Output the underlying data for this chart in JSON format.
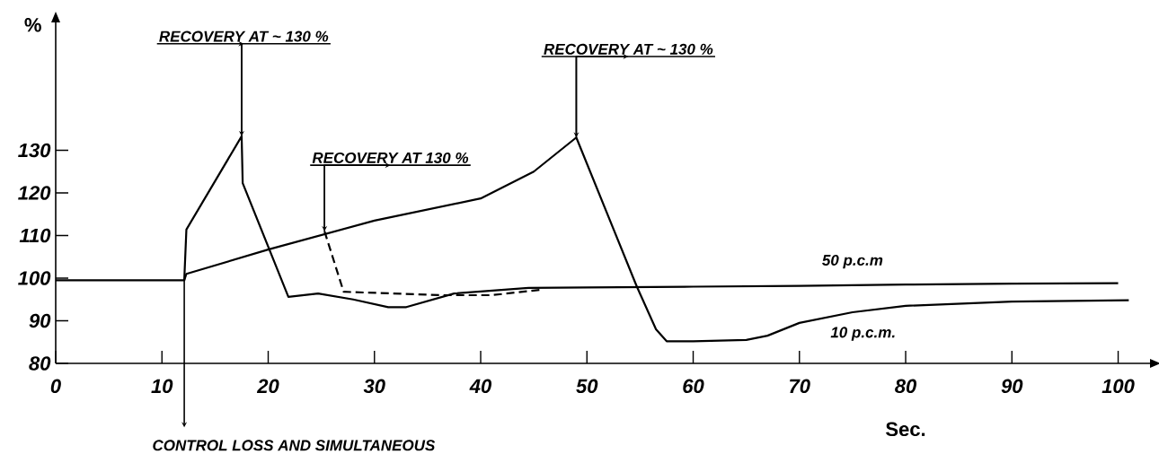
{
  "chart_data": {
    "type": "line",
    "xlabel": "Sec.",
    "ylabel": "%",
    "xlim": [
      0,
      103
    ],
    "ylim": [
      80,
      160
    ],
    "xticks": [
      0,
      10,
      20,
      30,
      40,
      50,
      60,
      70,
      80,
      90,
      100
    ],
    "yticks": [
      80,
      90,
      100,
      110,
      120,
      130
    ],
    "grid": false,
    "marker": "none",
    "series": [
      {
        "name": "50 p.c.m",
        "color": "#000000",
        "line_style": "solid",
        "x": [
          0,
          12.1,
          12.3,
          17.5,
          17.6,
          21.9,
          24.7,
          28,
          31.3,
          33,
          37.5,
          44.5,
          50,
          60,
          70,
          80,
          90,
          100
        ],
        "values": [
          99.5,
          99.5,
          111.4,
          133.3,
          122.3,
          95.6,
          96.4,
          95,
          93.2,
          93.2,
          96.4,
          97.7,
          97.8,
          98,
          98.2,
          98.5,
          98.7,
          98.8
        ]
      },
      {
        "name": "10 p.c.m.",
        "color": "#000000",
        "line_style": "solid",
        "x": [
          12.1,
          12.3,
          20,
          30,
          40,
          45,
          49,
          54.7,
          56.5,
          57.5,
          60,
          65,
          67,
          70,
          75,
          80,
          90,
          101
        ],
        "values": [
          99.5,
          101,
          106.7,
          113.5,
          118.7,
          125,
          133,
          98,
          88,
          85.2,
          85.2,
          85.5,
          86.5,
          89.5,
          92,
          93.5,
          94.5,
          94.8
        ]
      },
      {
        "color": "#000000",
        "line_style": "dashed",
        "x": [
          25.3,
          27.1,
          36.3,
          41,
          45.8
        ],
        "values": [
          111,
          96.8,
          96,
          96,
          97.3
        ]
      }
    ],
    "annotations": [
      {
        "text": "RECOVERY AT ~ 130 %",
        "x": 17.5,
        "y": 133.3
      },
      {
        "text": "RECOVERY AT 130 %",
        "x": 25.3,
        "y": 111
      },
      {
        "text": "RECOVERY AT ~ 130 %",
        "x": 49,
        "y": 133
      },
      {
        "text": "CONTROL LOSS AND SIMULTANEOUS",
        "x": 12.1,
        "y": 99.5
      }
    ]
  }
}
